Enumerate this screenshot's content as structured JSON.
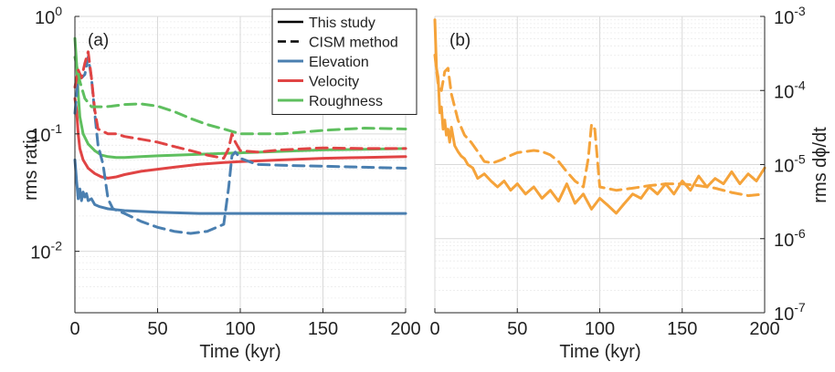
{
  "chart_data": [
    {
      "panel": "(a)",
      "type": "line",
      "ylabel": "rms ratio",
      "xlabel": "Time (kyr)",
      "yscale": "log",
      "xlim": [
        0,
        200
      ],
      "ylim": [
        0.003,
        1
      ],
      "xticks": [
        0,
        50,
        100,
        150,
        200
      ],
      "xtick_labels": [
        "0",
        "50",
        "100",
        "150",
        "200"
      ],
      "yticks": [
        0.01,
        0.1,
        1
      ],
      "ytick_base": "10",
      "ytick_exps": [
        "-2",
        "-1",
        "0"
      ],
      "grid": true,
      "legend": {
        "placement": "top-right",
        "entries": [
          {
            "label": "This study",
            "style": "solid",
            "color": "#000000"
          },
          {
            "label": "CISM method",
            "style": "dashed",
            "color": "#000000"
          },
          {
            "label": "Elevation",
            "style": "solid",
            "color": "#4a7fb0"
          },
          {
            "label": "Velocity",
            "style": "solid",
            "color": "#e04444"
          },
          {
            "label": "Roughness",
            "style": "solid",
            "color": "#5fbf5f"
          }
        ]
      },
      "series": [
        {
          "name": "Elevation",
          "method": "This study",
          "color": "#4a7fb0",
          "x": [
            0,
            1,
            2,
            3,
            4,
            5,
            6,
            7,
            8,
            10,
            12,
            15,
            20,
            30,
            50,
            75,
            100,
            125,
            150,
            175,
            200
          ],
          "y": [
            0.06,
            0.04,
            0.028,
            0.034,
            0.027,
            0.032,
            0.029,
            0.031,
            0.027,
            0.028,
            0.025,
            0.024,
            0.023,
            0.0222,
            0.0215,
            0.021,
            0.021,
            0.021,
            0.021,
            0.021,
            0.021
          ]
        },
        {
          "name": "Velocity",
          "method": "This study",
          "color": "#e04444",
          "x": [
            0,
            1,
            2,
            3,
            5,
            8,
            12,
            16,
            20,
            25,
            30,
            40,
            50,
            60,
            75,
            90,
            100,
            125,
            150,
            175,
            200
          ],
          "y": [
            0.2,
            0.16,
            0.1,
            0.075,
            0.06,
            0.051,
            0.046,
            0.043,
            0.042,
            0.043,
            0.045,
            0.048,
            0.05,
            0.052,
            0.055,
            0.057,
            0.058,
            0.06,
            0.062,
            0.063,
            0.064
          ]
        },
        {
          "name": "Roughness",
          "method": "This study",
          "color": "#5fbf5f",
          "x": [
            0,
            1,
            2,
            3,
            5,
            8,
            12,
            16,
            20,
            25,
            30,
            40,
            50,
            75,
            100,
            125,
            150,
            175,
            200
          ],
          "y": [
            0.65,
            0.4,
            0.22,
            0.14,
            0.1,
            0.082,
            0.072,
            0.066,
            0.064,
            0.063,
            0.063,
            0.064,
            0.065,
            0.067,
            0.069,
            0.071,
            0.073,
            0.074,
            0.075
          ]
        },
        {
          "name": "Elevation",
          "method": "CISM method",
          "color": "#4a7fb0",
          "x": [
            0,
            2,
            4,
            6,
            8,
            10,
            12,
            14,
            17,
            20,
            23,
            30,
            40,
            50,
            60,
            70,
            80,
            90,
            93,
            95,
            97,
            100,
            110,
            125,
            150,
            175,
            200
          ],
          "y": [
            0.15,
            0.3,
            0.3,
            0.32,
            0.45,
            0.3,
            0.15,
            0.08,
            0.055,
            0.028,
            0.023,
            0.021,
            0.018,
            0.016,
            0.0148,
            0.0142,
            0.0148,
            0.017,
            0.035,
            0.065,
            0.07,
            0.062,
            0.055,
            0.054,
            0.053,
            0.052,
            0.051
          ]
        },
        {
          "name": "Velocity",
          "method": "CISM method",
          "color": "#e04444",
          "x": [
            0,
            2,
            4,
            6,
            8,
            10,
            12,
            14,
            17,
            20,
            25,
            30,
            40,
            50,
            60,
            70,
            80,
            90,
            93,
            95,
            97,
            100,
            110,
            125,
            150,
            175,
            200
          ],
          "y": [
            0.25,
            0.35,
            0.3,
            0.4,
            0.5,
            0.3,
            0.16,
            0.11,
            0.105,
            0.1,
            0.1,
            0.095,
            0.09,
            0.085,
            0.078,
            0.072,
            0.066,
            0.062,
            0.075,
            0.1,
            0.085,
            0.072,
            0.07,
            0.073,
            0.076,
            0.075,
            0.075
          ]
        },
        {
          "name": "Roughness",
          "method": "CISM method",
          "color": "#5fbf5f",
          "x": [
            0,
            3,
            6,
            10,
            14,
            18,
            22,
            30,
            40,
            50,
            60,
            70,
            80,
            90,
            100,
            110,
            125,
            150,
            175,
            200
          ],
          "y": [
            0.45,
            0.28,
            0.2,
            0.17,
            0.17,
            0.17,
            0.172,
            0.178,
            0.18,
            0.172,
            0.155,
            0.135,
            0.12,
            0.11,
            0.1,
            0.1,
            0.1,
            0.107,
            0.112,
            0.11
          ]
        }
      ]
    },
    {
      "panel": "(b)",
      "type": "line",
      "ylabel": "rms dϕ/dt",
      "xlabel": "Time (kyr)",
      "yscale": "log",
      "xlim": [
        0,
        200
      ],
      "ylim": [
        1e-07,
        0.001
      ],
      "xticks": [
        0,
        50,
        100,
        150,
        200
      ],
      "xtick_labels": [
        "0",
        "50",
        "100",
        "150",
        "200"
      ],
      "yticks": [
        1e-07,
        1e-06,
        1e-05,
        0.0001,
        0.001
      ],
      "ytick_base": "10",
      "ytick_exps": [
        "-7",
        "-6",
        "-5",
        "-4",
        "-3"
      ],
      "yaxis_side": "right",
      "grid": true,
      "series": [
        {
          "name": "phi",
          "method": "This study",
          "color": "#f5a33a",
          "x": [
            0,
            1,
            2,
            3,
            4,
            5,
            6,
            7,
            8,
            9,
            10,
            12,
            14,
            16,
            18,
            20,
            23,
            26,
            30,
            34,
            38,
            42,
            46,
            50,
            55,
            60,
            65,
            70,
            75,
            80,
            85,
            90,
            95,
            100,
            105,
            110,
            115,
            120,
            125,
            130,
            135,
            140,
            145,
            150,
            155,
            160,
            165,
            170,
            175,
            180,
            185,
            190,
            195,
            200
          ],
          "y": [
            0.0009,
            0.0002,
            0.00015,
            5e-05,
            6e-05,
            3e-05,
            4e-05,
            2.5e-05,
            3e-05,
            2e-05,
            3.2e-05,
            1.8e-05,
            1.5e-05,
            1.3e-05,
            1.2e-05,
            1e-05,
            9e-06,
            6.5e-06,
            7.5e-06,
            6e-06,
            5e-06,
            6e-06,
            4.5e-06,
            5.5e-06,
            4e-06,
            5e-06,
            3.5e-06,
            4.5e-06,
            3.2e-06,
            5.5e-06,
            3e-06,
            4e-06,
            2.5e-06,
            3.5e-06,
            2.8e-06,
            2.2e-06,
            3e-06,
            4e-06,
            3.5e-06,
            5e-06,
            4e-06,
            5.5e-06,
            4e-06,
            6e-06,
            4.5e-06,
            7e-06,
            5e-06,
            6.5e-06,
            5.5e-06,
            8e-06,
            5.5e-06,
            7.5e-06,
            6e-06,
            9e-06
          ]
        },
        {
          "name": "phi",
          "method": "CISM method",
          "color": "#f5a33a",
          "x": [
            0,
            2,
            4,
            6,
            8,
            10,
            14,
            18,
            22,
            26,
            30,
            35,
            40,
            45,
            50,
            55,
            60,
            65,
            70,
            75,
            80,
            85,
            90,
            93,
            95,
            97,
            100,
            110,
            120,
            130,
            140,
            150,
            160,
            170,
            180,
            190,
            200
          ],
          "y": [
            0.0003,
            0.00012,
            0.0001,
            0.00018,
            0.0002,
            9e-05,
            4e-05,
            2.5e-05,
            2e-05,
            1.5e-05,
            1.1e-05,
            1.05e-05,
            1.15e-05,
            1.3e-05,
            1.45e-05,
            1.5e-05,
            1.55e-05,
            1.5e-05,
            1.35e-05,
            1.1e-05,
            8e-06,
            6e-06,
            5e-06,
            1.2e-05,
            3.5e-05,
            3e-05,
            5e-06,
            4.5e-06,
            4.8e-06,
            5.2e-06,
            5.5e-06,
            5.5e-06,
            5.2e-06,
            4.8e-06,
            4.2e-06,
            3.8e-06,
            4e-06
          ]
        }
      ]
    }
  ]
}
